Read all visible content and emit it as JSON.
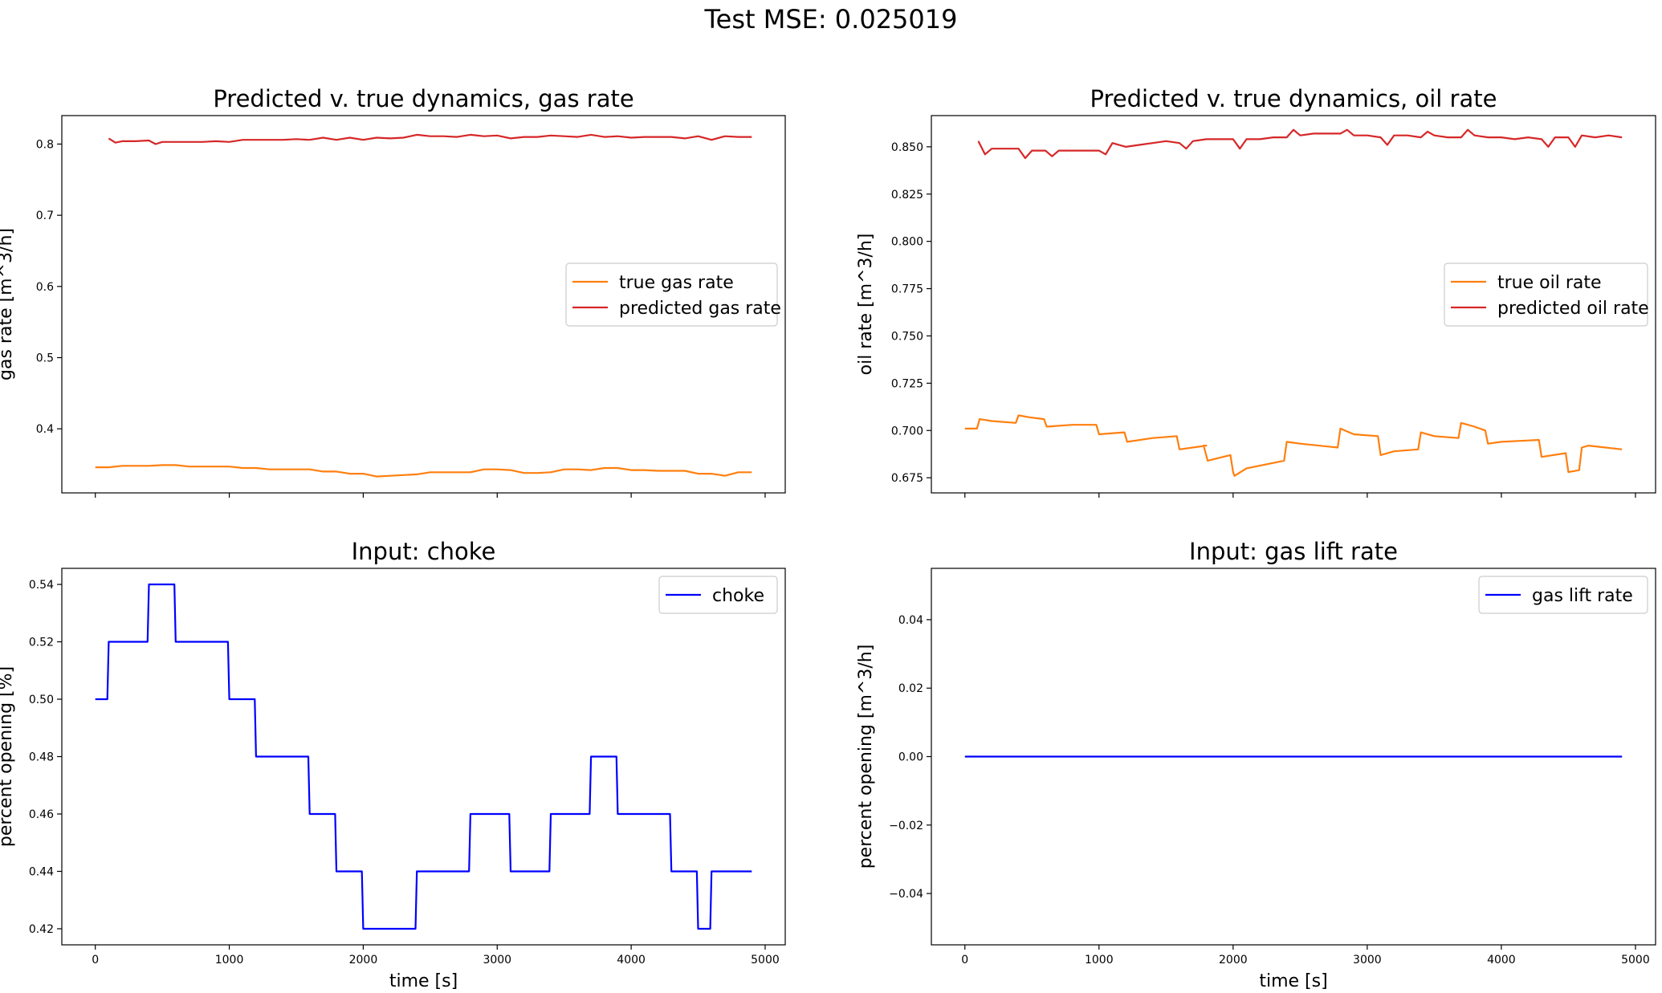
{
  "figure": {
    "suptitle": "Test MSE: 0.025019"
  },
  "colors": {
    "true_series": "#ff7f0e",
    "predicted_series": "#d62728",
    "input_series": "#0000ff",
    "axes": "#000000",
    "background": "#ffffff"
  },
  "chart_data": [
    {
      "type": "line",
      "title": "Predicted v. true dynamics, gas rate",
      "xlabel": "",
      "ylabel": "gas rate [m^3/h]",
      "xlim": [
        -250,
        5150
      ],
      "ylim": [
        0.31,
        0.84
      ],
      "xticks": [
        0,
        1000,
        2000,
        3000,
        4000,
        5000
      ],
      "xtick_labels_visible": false,
      "yticks": [
        0.4,
        0.5,
        0.6,
        0.7,
        0.8
      ],
      "ytick_labels": [
        "0.4",
        "0.5",
        "0.6",
        "0.7",
        "0.8"
      ],
      "grid": false,
      "legend_position": "center-right",
      "series": [
        {
          "name": "true gas rate",
          "color": "#ff7f0e",
          "x": [
            0,
            100,
            200,
            300,
            400,
            500,
            600,
            700,
            800,
            900,
            1000,
            1100,
            1200,
            1300,
            1400,
            1500,
            1600,
            1700,
            1800,
            1900,
            2000,
            2100,
            2200,
            2300,
            2400,
            2500,
            2600,
            2700,
            2800,
            2900,
            3000,
            3100,
            3200,
            3300,
            3400,
            3500,
            3600,
            3700,
            3800,
            3900,
            4000,
            4100,
            4200,
            4300,
            4400,
            4500,
            4600,
            4700,
            4800,
            4900
          ],
          "y": [
            0.346,
            0.346,
            0.348,
            0.348,
            0.348,
            0.349,
            0.349,
            0.347,
            0.347,
            0.347,
            0.347,
            0.345,
            0.345,
            0.343,
            0.343,
            0.343,
            0.343,
            0.34,
            0.34,
            0.337,
            0.337,
            0.333,
            0.334,
            0.335,
            0.336,
            0.339,
            0.339,
            0.339,
            0.339,
            0.343,
            0.343,
            0.342,
            0.338,
            0.338,
            0.339,
            0.343,
            0.343,
            0.342,
            0.345,
            0.345,
            0.342,
            0.342,
            0.341,
            0.341,
            0.341,
            0.337,
            0.337,
            0.334,
            0.339,
            0.339
          ]
        },
        {
          "name": "predicted gas rate",
          "color": "#d62728",
          "x": [
            100,
            150,
            200,
            300,
            400,
            450,
            500,
            600,
            700,
            800,
            900,
            1000,
            1100,
            1200,
            1300,
            1400,
            1500,
            1600,
            1700,
            1800,
            1900,
            2000,
            2100,
            2200,
            2300,
            2400,
            2500,
            2600,
            2700,
            2800,
            2900,
            3000,
            3100,
            3200,
            3300,
            3400,
            3500,
            3600,
            3700,
            3800,
            3900,
            4000,
            4100,
            4200,
            4300,
            4400,
            4500,
            4600,
            4700,
            4800,
            4900
          ],
          "y": [
            0.808,
            0.802,
            0.804,
            0.804,
            0.805,
            0.8,
            0.803,
            0.803,
            0.803,
            0.803,
            0.804,
            0.803,
            0.806,
            0.806,
            0.806,
            0.806,
            0.807,
            0.806,
            0.809,
            0.806,
            0.809,
            0.806,
            0.809,
            0.808,
            0.809,
            0.813,
            0.811,
            0.811,
            0.81,
            0.813,
            0.811,
            0.812,
            0.808,
            0.81,
            0.81,
            0.812,
            0.811,
            0.81,
            0.813,
            0.81,
            0.811,
            0.809,
            0.81,
            0.81,
            0.81,
            0.808,
            0.811,
            0.806,
            0.811,
            0.81,
            0.81
          ]
        }
      ]
    },
    {
      "type": "line",
      "title": "Predicted v. true dynamics, oil rate",
      "xlabel": "",
      "ylabel": "oil rate [m^3/h]",
      "xlim": [
        -250,
        5150
      ],
      "ylim": [
        0.667,
        0.8665
      ],
      "xticks": [
        0,
        1000,
        2000,
        3000,
        4000,
        5000
      ],
      "xtick_labels_visible": false,
      "yticks": [
        0.675,
        0.7,
        0.725,
        0.75,
        0.775,
        0.8,
        0.825,
        0.85
      ],
      "ytick_labels": [
        "0.675",
        "0.700",
        "0.725",
        "0.750",
        "0.775",
        "0.800",
        "0.825",
        "0.850"
      ],
      "grid": false,
      "legend_position": "center-right",
      "series": [
        {
          "name": "true oil rate",
          "color": "#ff7f0e",
          "x": [
            0,
            90,
            110,
            200,
            380,
            400,
            480,
            590,
            610,
            800,
            980,
            1000,
            1190,
            1210,
            1400,
            1580,
            1600,
            1800,
            1780,
            1810,
            1980,
            2000,
            2010,
            2100,
            2380,
            2400,
            2500,
            2780,
            2800,
            2900,
            3080,
            3100,
            3200,
            3380,
            3400,
            3500,
            3680,
            3700,
            3800,
            3880,
            3900,
            4000,
            4280,
            4300,
            4480,
            4500,
            4580,
            4600,
            4650,
            4900
          ],
          "y": [
            0.701,
            0.701,
            0.706,
            0.705,
            0.704,
            0.708,
            0.707,
            0.706,
            0.702,
            0.703,
            0.703,
            0.698,
            0.699,
            0.694,
            0.696,
            0.697,
            0.69,
            0.692,
            0.692,
            0.684,
            0.687,
            0.678,
            0.676,
            0.68,
            0.684,
            0.694,
            0.693,
            0.691,
            0.701,
            0.698,
            0.697,
            0.687,
            0.689,
            0.69,
            0.699,
            0.697,
            0.696,
            0.704,
            0.702,
            0.7,
            0.693,
            0.694,
            0.695,
            0.686,
            0.688,
            0.678,
            0.679,
            0.691,
            0.692,
            0.69
          ]
        },
        {
          "name": "predicted oil rate",
          "color": "#d62728",
          "x": [
            100,
            150,
            200,
            300,
            400,
            450,
            500,
            600,
            650,
            700,
            800,
            900,
            1000,
            1050,
            1100,
            1200,
            1300,
            1400,
            1500,
            1600,
            1650,
            1700,
            1800,
            1900,
            2000,
            2050,
            2100,
            2200,
            2300,
            2400,
            2450,
            2500,
            2600,
            2700,
            2800,
            2850,
            2900,
            3000,
            3100,
            3150,
            3200,
            3300,
            3400,
            3450,
            3500,
            3600,
            3700,
            3750,
            3800,
            3900,
            4000,
            4100,
            4200,
            4300,
            4350,
            4400,
            4500,
            4550,
            4600,
            4700,
            4800,
            4900
          ],
          "y": [
            0.853,
            0.846,
            0.849,
            0.849,
            0.849,
            0.844,
            0.848,
            0.848,
            0.845,
            0.848,
            0.848,
            0.848,
            0.848,
            0.846,
            0.852,
            0.85,
            0.851,
            0.852,
            0.853,
            0.852,
            0.849,
            0.853,
            0.854,
            0.854,
            0.854,
            0.849,
            0.854,
            0.854,
            0.855,
            0.855,
            0.859,
            0.856,
            0.857,
            0.857,
            0.857,
            0.859,
            0.856,
            0.856,
            0.855,
            0.851,
            0.856,
            0.856,
            0.855,
            0.858,
            0.856,
            0.855,
            0.855,
            0.859,
            0.856,
            0.855,
            0.855,
            0.854,
            0.855,
            0.854,
            0.85,
            0.855,
            0.855,
            0.85,
            0.856,
            0.855,
            0.856,
            0.855
          ]
        }
      ]
    },
    {
      "type": "line",
      "title": "Input: choke",
      "xlabel": "time [s]",
      "ylabel": "percent opening [%]",
      "xlim": [
        -250,
        5150
      ],
      "ylim": [
        0.4144,
        0.5456
      ],
      "xticks": [
        0,
        1000,
        2000,
        3000,
        4000,
        5000
      ],
      "xtick_labels_visible": true,
      "xtick_labels": [
        "0",
        "1000",
        "2000",
        "3000",
        "4000",
        "5000"
      ],
      "yticks": [
        0.42,
        0.44,
        0.46,
        0.48,
        0.5,
        0.52,
        0.54
      ],
      "ytick_labels": [
        "0.42",
        "0.44",
        "0.46",
        "0.48",
        "0.50",
        "0.52",
        "0.54"
      ],
      "grid": false,
      "legend_position": "top-right",
      "series": [
        {
          "name": "choke",
          "color": "#0000ff",
          "x": [
            0,
            90,
            100,
            390,
            400,
            590,
            600,
            990,
            1000,
            1190,
            1200,
            1590,
            1600,
            1790,
            1800,
            1990,
            2000,
            2390,
            2400,
            2790,
            2800,
            3090,
            3100,
            3390,
            3400,
            3690,
            3700,
            3890,
            3900,
            4290,
            4300,
            4490,
            4500,
            4590,
            4600,
            4900
          ],
          "y": [
            0.5,
            0.5,
            0.52,
            0.52,
            0.54,
            0.54,
            0.52,
            0.52,
            0.5,
            0.5,
            0.48,
            0.48,
            0.46,
            0.46,
            0.44,
            0.44,
            0.42,
            0.42,
            0.44,
            0.44,
            0.46,
            0.46,
            0.44,
            0.44,
            0.46,
            0.46,
            0.48,
            0.48,
            0.46,
            0.46,
            0.44,
            0.44,
            0.42,
            0.42,
            0.44,
            0.44
          ]
        }
      ]
    },
    {
      "type": "line",
      "title": "Input: gas lift rate",
      "xlabel": "time [s]",
      "ylabel": "percent opening [m^3/h]",
      "xlim": [
        -250,
        5150
      ],
      "ylim": [
        -0.055,
        0.055
      ],
      "xticks": [
        0,
        1000,
        2000,
        3000,
        4000,
        5000
      ],
      "xtick_labels_visible": true,
      "xtick_labels": [
        "0",
        "1000",
        "2000",
        "3000",
        "4000",
        "5000"
      ],
      "yticks": [
        -0.04,
        -0.02,
        0.0,
        0.02,
        0.04
      ],
      "ytick_labels": [
        "−0.04",
        "−0.02",
        "0.00",
        "0.02",
        "0.04"
      ],
      "grid": false,
      "legend_position": "top-right",
      "series": [
        {
          "name": "gas lift rate",
          "color": "#0000ff",
          "x": [
            0,
            4900
          ],
          "y": [
            0.0,
            0.0
          ]
        }
      ]
    }
  ]
}
